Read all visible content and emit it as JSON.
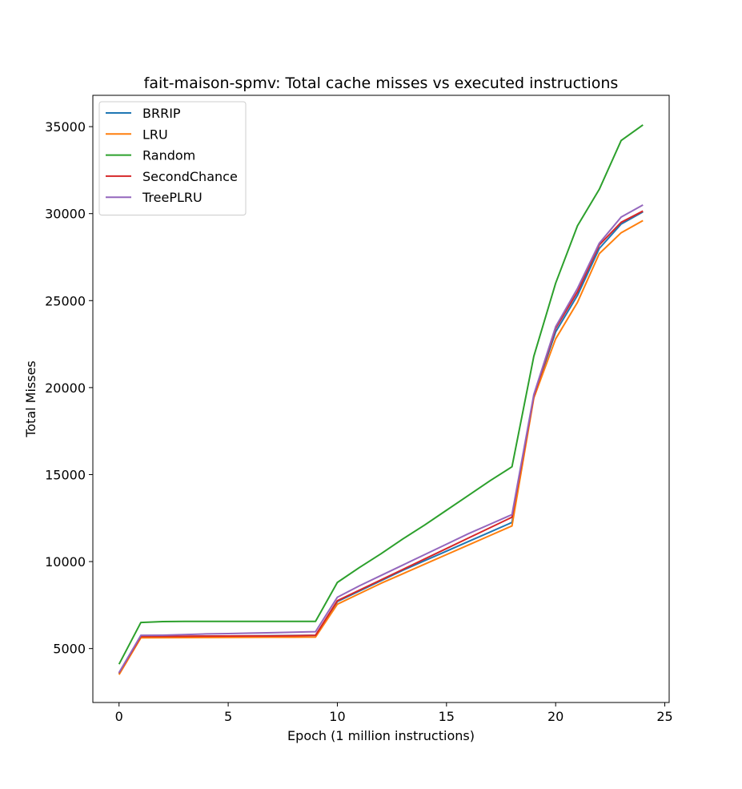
{
  "chart_data": {
    "type": "line",
    "title": "fait-maison-spmv: Total cache misses vs executed instructions",
    "xlabel": "Epoch (1 million instructions)",
    "ylabel": "Total Misses",
    "xlim": [
      -1.2,
      25.2
    ],
    "ylim": [
      1900,
      36800
    ],
    "xticks": [
      0,
      5,
      10,
      15,
      20,
      25
    ],
    "yticks": [
      5000,
      10000,
      15000,
      20000,
      25000,
      30000,
      35000
    ],
    "grid": false,
    "legend_position": "top-left",
    "x": [
      0,
      1,
      2,
      3,
      4,
      5,
      6,
      7,
      8,
      9,
      10,
      11,
      12,
      13,
      14,
      15,
      16,
      17,
      18,
      19,
      20,
      21,
      22,
      23,
      24
    ],
    "series": [
      {
        "name": "BRRIP",
        "color": "#1f77b4",
        "values": [
          3550,
          5680,
          5690,
          5700,
          5710,
          5720,
          5730,
          5740,
          5750,
          5760,
          7700,
          8300,
          8900,
          9500,
          10050,
          10600,
          11150,
          11700,
          12250,
          19500,
          23200,
          25300,
          28000,
          29400,
          30100
        ]
      },
      {
        "name": "LRU",
        "color": "#ff7f0e",
        "values": [
          3500,
          5620,
          5625,
          5630,
          5635,
          5640,
          5645,
          5650,
          5655,
          5660,
          7550,
          8150,
          8750,
          9300,
          9850,
          10400,
          10950,
          11500,
          12050,
          19400,
          22800,
          24900,
          27700,
          28900,
          29600
        ]
      },
      {
        "name": "Random",
        "color": "#2ca02c",
        "values": [
          4100,
          6500,
          6550,
          6560,
          6560,
          6560,
          6560,
          6560,
          6560,
          6560,
          8800,
          9650,
          10450,
          11300,
          12100,
          12950,
          13800,
          14650,
          15450,
          21800,
          26000,
          29300,
          31400,
          34200,
          35100
        ]
      },
      {
        "name": "SecondChance",
        "color": "#d62728",
        "values": [
          3600,
          5700,
          5705,
          5710,
          5715,
          5720,
          5725,
          5730,
          5740,
          5760,
          7750,
          8350,
          8950,
          9550,
          10150,
          10750,
          11350,
          11950,
          12550,
          19500,
          23400,
          25500,
          28200,
          29500,
          30150
        ]
      },
      {
        "name": "TreePLRU",
        "color": "#9467bd",
        "values": [
          3620,
          5760,
          5770,
          5800,
          5840,
          5860,
          5890,
          5910,
          5940,
          5970,
          7950,
          8600,
          9200,
          9800,
          10400,
          11000,
          11600,
          12150,
          12700,
          19600,
          23500,
          25700,
          28300,
          29800,
          30500
        ]
      }
    ]
  }
}
